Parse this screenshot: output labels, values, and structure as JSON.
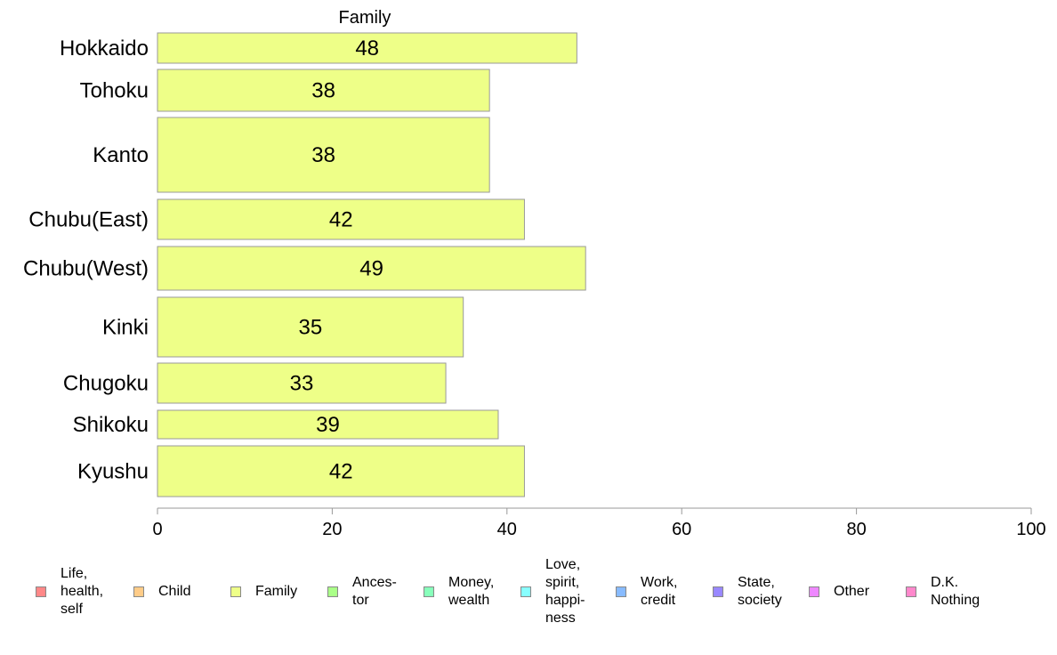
{
  "chart_data": {
    "type": "bar",
    "orientation": "horizontal",
    "title": "Family",
    "categories": [
      "Hokkaido",
      "Tohoku",
      "Kanto",
      "Chubu(East)",
      "Chubu(West)",
      "Kinki",
      "Chugoku",
      "Shikoku",
      "Kyushu"
    ],
    "values": [
      48,
      38,
      38,
      42,
      49,
      35,
      33,
      39,
      42
    ],
    "xlim": [
      0,
      100
    ],
    "xticks": [
      0,
      20,
      40,
      60,
      80,
      100
    ],
    "bar_color": "#eeff88",
    "grid": false,
    "legend_position": "bottom"
  },
  "legend": [
    {
      "label": "Life,\nhealth,\nself",
      "color": "#ff8888"
    },
    {
      "label": "Child",
      "color": "#ffcc88"
    },
    {
      "label": "Family",
      "color": "#eeff88"
    },
    {
      "label": "Ances-\ntor",
      "color": "#aaff88"
    },
    {
      "label": "Money,\nwealth",
      "color": "#88ffbb"
    },
    {
      "label": "Love,\nspirit,\nhappi-\nness",
      "color": "#88ffff"
    },
    {
      "label": "Work,\ncredit",
      "color": "#88bbff"
    },
    {
      "label": "State,\nsociety",
      "color": "#9988ff"
    },
    {
      "label": "Other",
      "color": "#ee88ff"
    },
    {
      "label": "D.K.\nNothing",
      "color": "#ff88cc"
    }
  ]
}
